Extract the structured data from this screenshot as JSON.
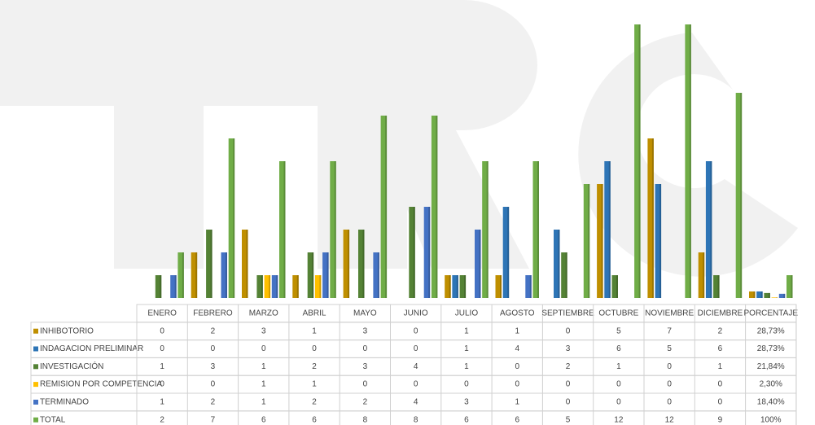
{
  "chart_data": {
    "type": "bar",
    "categories": [
      "ENERO",
      "FEBRERO",
      "MARZO",
      "ABRIL",
      "MAYO",
      "JUNIO",
      "JULIO",
      "AGOSTO",
      "SEPTIEMBRE",
      "OCTUBRE",
      "NOVIEMBRE",
      "DICIEMBRE"
    ],
    "percent_header": "PORCENTAJE",
    "series": [
      {
        "name": "INHIBOTORIO",
        "color": "#bf8f00",
        "values": [
          0,
          2,
          3,
          1,
          3,
          0,
          1,
          1,
          0,
          5,
          7,
          2
        ],
        "percent": 28.73,
        "percent_label": "28,73%"
      },
      {
        "name": "INDAGACION PRELIMINAR",
        "color": "#2e75b6",
        "values": [
          0,
          0,
          0,
          0,
          0,
          0,
          1,
          4,
          3,
          6,
          5,
          6
        ],
        "percent": 28.73,
        "percent_label": "28,73%"
      },
      {
        "name": "INVESTIGACIÓN",
        "color": "#548235",
        "values": [
          1,
          3,
          1,
          2,
          3,
          4,
          1,
          0,
          2,
          1,
          0,
          1
        ],
        "percent": 21.84,
        "percent_label": "21,84%"
      },
      {
        "name": "REMISION POR COMPETENCIA",
        "color": "#ffc000",
        "values": [
          0,
          0,
          1,
          1,
          0,
          0,
          0,
          0,
          0,
          0,
          0,
          0
        ],
        "percent": 2.3,
        "percent_label": "2,30%"
      },
      {
        "name": "TERMINADO",
        "color": "#4472c4",
        "values": [
          1,
          2,
          1,
          2,
          2,
          4,
          3,
          1,
          0,
          0,
          0,
          0
        ],
        "percent": 18.4,
        "percent_label": "18,40%"
      },
      {
        "name": "TOTAL",
        "color": "#70ad47",
        "values": [
          2,
          7,
          6,
          6,
          8,
          8,
          6,
          6,
          5,
          12,
          12,
          9
        ],
        "percent": 100,
        "percent_label": "100%"
      }
    ]
  }
}
